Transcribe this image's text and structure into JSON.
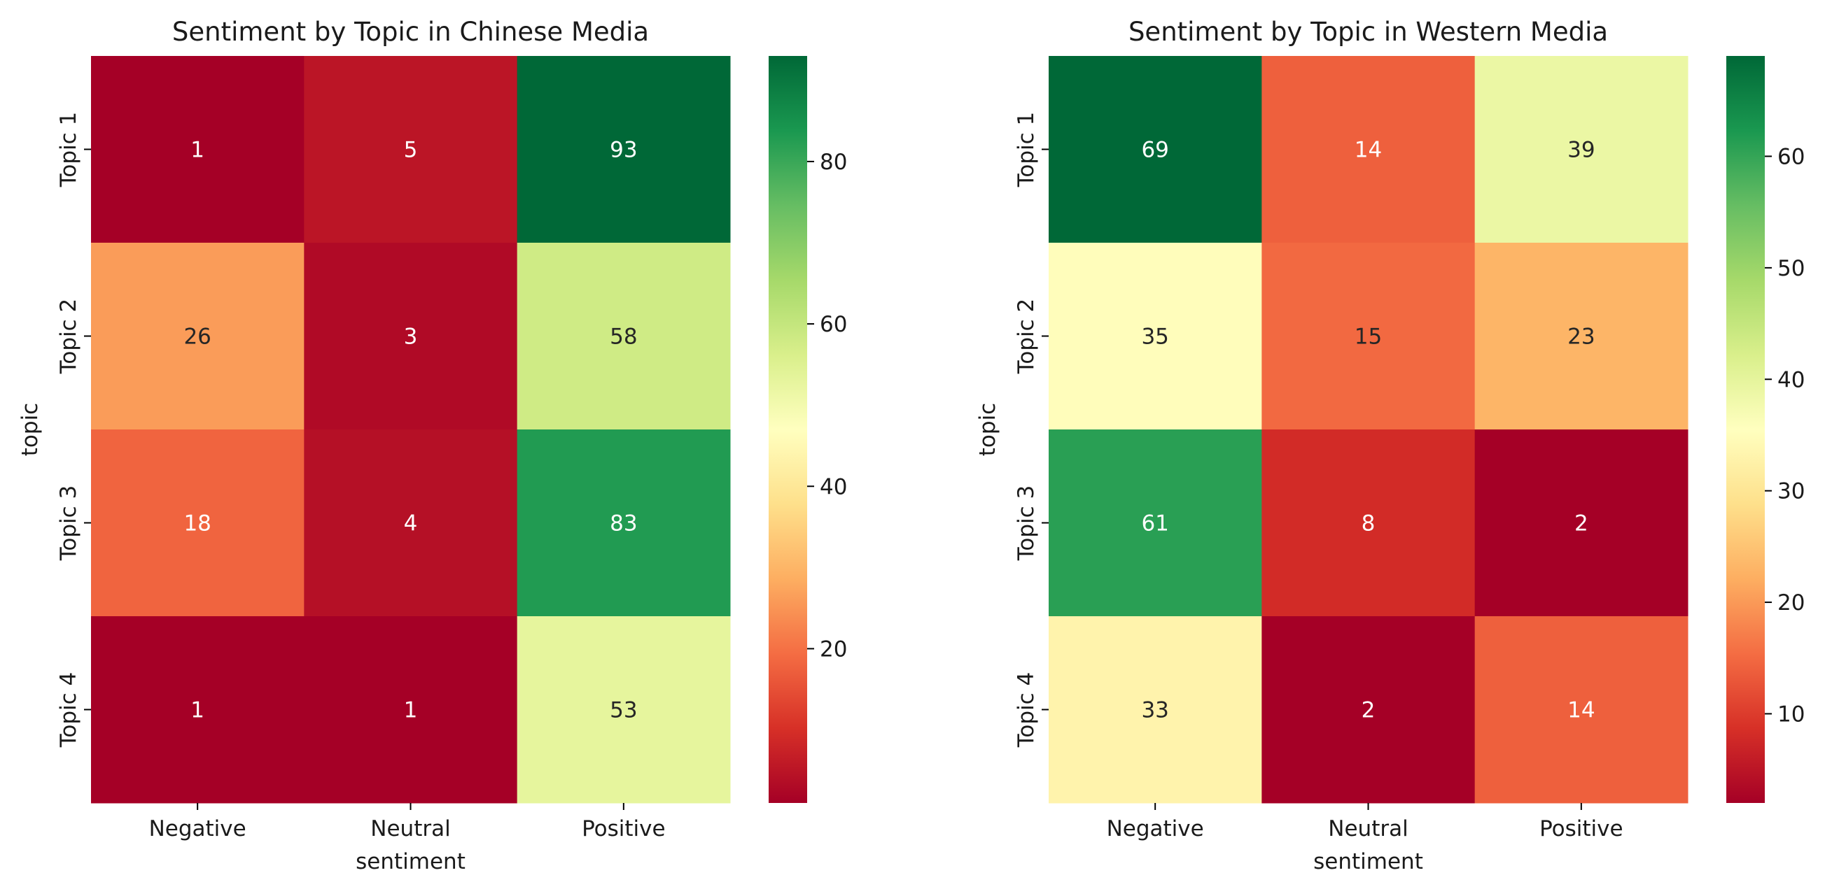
{
  "chart_data": [
    {
      "type": "heatmap",
      "title": "Sentiment by Topic in Chinese Media",
      "xlabel": "sentiment",
      "ylabel": "topic",
      "x_categories": [
        "Negative",
        "Neutral",
        "Positive"
      ],
      "y_categories": [
        "Topic 1",
        "Topic 2",
        "Topic 3",
        "Topic 4"
      ],
      "values": [
        [
          1,
          5,
          93
        ],
        [
          26,
          3,
          58
        ],
        [
          18,
          4,
          83
        ],
        [
          1,
          1,
          53
        ]
      ],
      "colormap": "RdYlGn",
      "vmin": 1,
      "vmax": 93,
      "colorbar_ticks": [
        20,
        40,
        60,
        80
      ],
      "annotations": true
    },
    {
      "type": "heatmap",
      "title": "Sentiment by Topic in Western Media",
      "xlabel": "sentiment",
      "ylabel": "topic",
      "x_categories": [
        "Negative",
        "Neutral",
        "Positive"
      ],
      "y_categories": [
        "Topic 1",
        "Topic 2",
        "Topic 3",
        "Topic 4"
      ],
      "values": [
        [
          69,
          14,
          39
        ],
        [
          35,
          15,
          23
        ],
        [
          61,
          8,
          2
        ],
        [
          33,
          2,
          14
        ]
      ],
      "colormap": "RdYlGn",
      "vmin": 2,
      "vmax": 69,
      "colorbar_ticks": [
        10,
        20,
        30,
        40,
        50,
        60
      ],
      "annotations": true
    }
  ],
  "colormap_stops": [
    "#a50026",
    "#d73027",
    "#f46d43",
    "#fdae61",
    "#fee08b",
    "#ffffbf",
    "#d9ef8b",
    "#a6d96a",
    "#66bd63",
    "#1a9850",
    "#006837"
  ]
}
